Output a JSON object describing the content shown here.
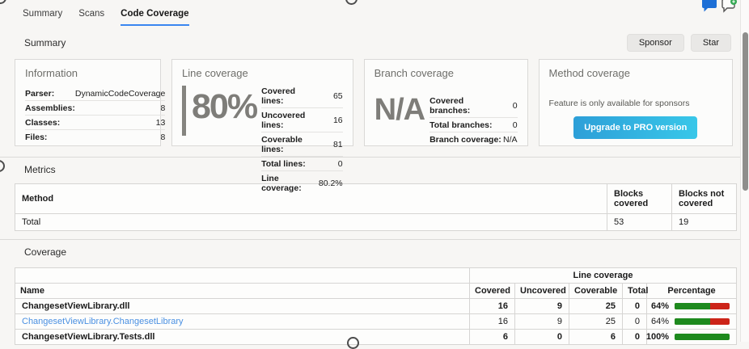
{
  "tabs": [
    {
      "label": "Summary"
    },
    {
      "label": "Scans"
    },
    {
      "label": "Code Coverage",
      "active": true
    }
  ],
  "colors": {
    "tab_underline": "#3a86f0",
    "link": "#4a90e2",
    "bar_green": "#1e8a1e",
    "bar_red": "#cc2418",
    "pro_button_gradient_start": "#2d9fd8",
    "pro_button_gradient_end": "#38c7e9",
    "comment_icon_blue": "#1d6fd6",
    "badge_green": "#34a853"
  },
  "icons": {
    "comment": "comment-icon",
    "add_comment": "add-comment-icon"
  },
  "summary": {
    "title": "Summary",
    "sponsor_button": "Sponsor",
    "star_button": "Star",
    "information": {
      "title": "Information",
      "rows": [
        {
          "label": "Parser:",
          "value": "DynamicCodeCoverage"
        },
        {
          "label": "Assemblies:",
          "value": "8"
        },
        {
          "label": "Classes:",
          "value": "13"
        },
        {
          "label": "Files:",
          "value": "8"
        }
      ]
    },
    "line_coverage": {
      "title": "Line coverage",
      "big_value": "80%",
      "rows": [
        {
          "label": "Covered lines:",
          "value": "65"
        },
        {
          "label": "Uncovered lines:",
          "value": "16"
        },
        {
          "label": "Coverable lines:",
          "value": "81"
        },
        {
          "label": "Total lines:",
          "value": "0"
        },
        {
          "label": "Line coverage:",
          "value": "80.2%"
        }
      ]
    },
    "branch_coverage": {
      "title": "Branch coverage",
      "big_value": "N/A",
      "rows": [
        {
          "label": "Covered branches:",
          "value": "0"
        },
        {
          "label": "Total branches:",
          "value": "0"
        },
        {
          "label": "Branch coverage:",
          "value": "N/A"
        }
      ]
    },
    "method_coverage": {
      "title": "Method coverage",
      "note": "Feature is only available for sponsors",
      "button": "Upgrade to PRO version"
    }
  },
  "metrics": {
    "title": "Metrics",
    "headers": [
      "Method",
      "Blocks covered",
      "Blocks not covered"
    ],
    "rows": [
      {
        "method": "Total",
        "blocks_covered": "53",
        "blocks_not_covered": "19"
      }
    ]
  },
  "coverage": {
    "title": "Coverage",
    "group_header": "Line coverage",
    "headers": [
      "Name",
      "Covered",
      "Uncovered",
      "Coverable",
      "Total",
      "Percentage"
    ],
    "rows": [
      {
        "name": "ChangesetViewLibrary.dll",
        "covered": "16",
        "uncovered": "9",
        "coverable": "25",
        "total": "0",
        "percentage": "64%",
        "percent_value": 64
      },
      {
        "name": "ChangesetViewLibrary.ChangesetLibrary",
        "covered": "16",
        "uncovered": "9",
        "coverable": "25",
        "total": "0",
        "percentage": "64%",
        "percent_value": 64
      },
      {
        "name": "ChangesetViewLibrary.Tests.dll",
        "covered": "6",
        "uncovered": "0",
        "coverable": "6",
        "total": "0",
        "percentage": "100%",
        "percent_value": 100
      }
    ]
  }
}
